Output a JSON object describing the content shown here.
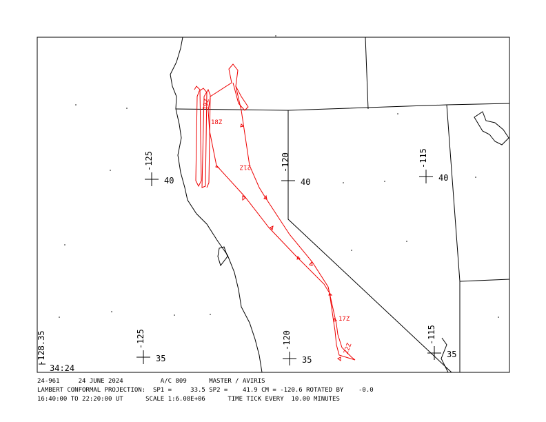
{
  "map": {
    "grid_labels": [
      {
        "lon": "-125",
        "lat": "40"
      },
      {
        "lon": "-120",
        "lat": "40"
      },
      {
        "lon": "-115",
        "lat": "40"
      },
      {
        "lon": "-125",
        "lat": "35"
      },
      {
        "lon": "-120",
        "lat": "35"
      },
      {
        "lon": "-115",
        "lat": "35"
      }
    ],
    "corner_lon": "-128.35",
    "corner_lat": "34:24",
    "time_labels": [
      "19Z",
      "18Z",
      "21Z",
      "17Z",
      "22Z"
    ]
  },
  "footer": {
    "lines": [
      "24-961     24 JUNE 2024          A/C 809      MASTER / AVIRIS",
      "LAMBERT CONFORMAL PROJECTION:  SP1 =     33.5 SP2 =    41.9 CM = -120.6 ROTATED BY    -0.0",
      "16:40:00 TO 22:20:00 UT      SCALE 1:6.08E+06      TIME TICK EVERY  10.00 MINUTES"
    ]
  }
}
